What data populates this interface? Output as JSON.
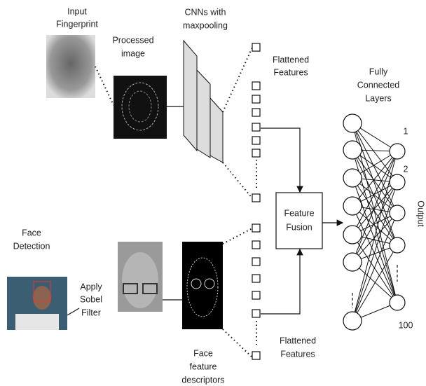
{
  "labels": {
    "input_fingerprint": [
      "Input",
      "Fingerprint"
    ],
    "processed_image": [
      "Processed",
      "image"
    ],
    "cnns": [
      "CNNs with",
      "maxpooling"
    ],
    "flattened_top": [
      "Flattened",
      "Features"
    ],
    "fully_connected": [
      "Fully",
      "Connected",
      "Layers"
    ],
    "feature_fusion": [
      "Feature",
      "Fusion"
    ],
    "face_detection": [
      "Face",
      "Detection"
    ],
    "sobel": [
      "Apply",
      "Sobel",
      "Filter"
    ],
    "face_descriptors": [
      "Face",
      "feature",
      "descriptors"
    ],
    "flattened_bottom": [
      "Flattened",
      "Features"
    ],
    "output": "Output",
    "output_first": "1",
    "output_second": "2",
    "output_last": "100"
  }
}
